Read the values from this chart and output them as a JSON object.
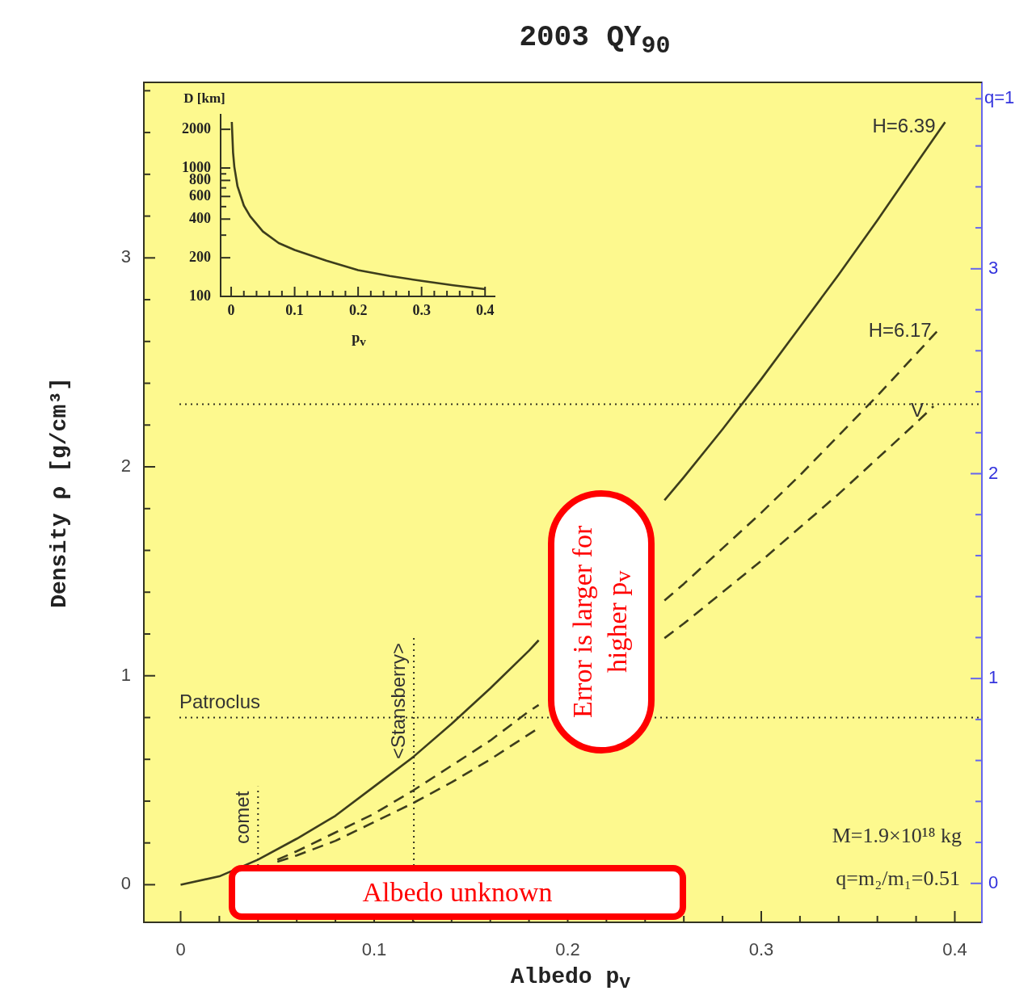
{
  "chart_data": [
    {
      "type": "line",
      "title": "2003 QY$_{90}$",
      "xlabel": "Albedo p$_{v}$",
      "ylabel": "Density ρ [g/cm³]",
      "series": [
        {
          "name": "H=6.39",
          "color": "#3d3d1c",
          "line_style": "solid",
          "x": [
            0,
            0.02,
            0.04,
            0.06,
            0.08,
            0.1,
            0.12,
            0.14,
            0.16,
            0.18,
            0.185,
            0.2,
            0.22,
            0.24,
            0.25,
            0.26,
            0.28,
            0.3,
            0.32,
            0.34,
            0.36,
            0.38,
            0.395
          ],
          "values": [
            0,
            0.04,
            0.12,
            0.22,
            0.33,
            0.47,
            0.61,
            0.77,
            0.94,
            1.12,
            1.17,
            null,
            null,
            null,
            1.84,
            1.95,
            2.18,
            2.42,
            2.67,
            2.92,
            3.18,
            3.45,
            3.65
          ]
        },
        {
          "name": "H=6.17",
          "color": "#3d3d1c",
          "line_style": "dashed",
          "x": [
            0.05,
            0.06,
            0.08,
            0.1,
            0.12,
            0.14,
            0.16,
            0.18,
            0.185,
            0.2,
            0.22,
            0.24,
            0.25,
            0.26,
            0.28,
            0.3,
            0.32,
            0.34,
            0.36,
            0.38,
            0.393
          ],
          "values": [
            0.12,
            0.16,
            0.25,
            0.34,
            0.45,
            0.57,
            0.69,
            0.83,
            0.86,
            null,
            null,
            null,
            1.36,
            1.44,
            1.61,
            1.78,
            1.96,
            2.15,
            2.34,
            2.54,
            2.67
          ]
        },
        {
          "name": "V",
          "color": "#3d3d1c",
          "line_style": "dashed",
          "x": [
            0.05,
            0.06,
            0.08,
            0.1,
            0.12,
            0.14,
            0.16,
            0.18,
            0.185,
            0.2,
            0.22,
            0.24,
            0.25,
            0.26,
            0.28,
            0.3,
            0.32,
            0.34,
            0.36,
            0.38,
            0.389
          ],
          "values": [
            0.11,
            0.14,
            0.21,
            0.3,
            0.39,
            0.49,
            0.6,
            0.72,
            0.75,
            null,
            null,
            null,
            1.18,
            1.25,
            1.4,
            1.55,
            1.71,
            1.87,
            2.04,
            2.21,
            2.29
          ]
        }
      ],
      "xlim": [
        -0.019,
        0.414
      ],
      "ylim": [
        -0.18,
        3.84
      ],
      "y2lim": [
        -0.19,
        3.91
      ],
      "xticks": [
        0,
        {
          "value": 0.02,
          "label": null
        },
        {
          "value": 0.04,
          "label": null
        },
        {
          "value": 0.06,
          "label": null
        },
        {
          "value": 0.08,
          "label": null
        },
        0.1,
        {
          "value": 0.12,
          "label": null
        },
        {
          "value": 0.14,
          "label": null
        },
        {
          "value": 0.16,
          "label": null
        },
        {
          "value": 0.18,
          "label": null
        },
        0.2,
        {
          "value": 0.22,
          "label": null
        },
        {
          "value": 0.24,
          "label": null
        },
        {
          "value": 0.26,
          "label": null
        },
        {
          "value": 0.28,
          "label": null
        },
        0.3,
        {
          "value": 0.32,
          "label": null
        },
        {
          "value": 0.34,
          "label": null
        },
        {
          "value": 0.36,
          "label": null
        },
        {
          "value": 0.38,
          "label": null
        },
        0.4
      ],
      "yticks": [
        0,
        {
          "value": 0.2,
          "label": null
        },
        {
          "value": 0.4,
          "label": null
        },
        {
          "value": 0.6,
          "label": null
        },
        {
          "value": 0.8,
          "label": null
        },
        1,
        {
          "value": 1.2,
          "label": null
        },
        {
          "value": 1.4,
          "label": null
        },
        {
          "value": 1.6,
          "label": null
        },
        {
          "value": 1.8,
          "label": null
        },
        2,
        {
          "value": 2.2,
          "label": null
        },
        {
          "value": 2.4,
          "label": null
        },
        {
          "value": 2.6,
          "label": null
        },
        {
          "value": 2.8,
          "label": null
        },
        3,
        {
          "value": 3.2,
          "label": null
        },
        {
          "value": 3.4,
          "label": null
        },
        {
          "value": 3.6,
          "label": null
        },
        {
          "value": 3.8,
          "label": null
        }
      ],
      "y2ticks": [
        0,
        {
          "value": 0.2,
          "label": null
        },
        {
          "value": 0.4,
          "label": null
        },
        {
          "value": 0.6,
          "label": null
        },
        {
          "value": 0.8,
          "label": null
        },
        1,
        {
          "value": 1.2,
          "label": null
        },
        {
          "value": 1.4,
          "label": null
        },
        {
          "value": 1.6,
          "label": null
        },
        {
          "value": 1.8,
          "label": null
        },
        2,
        {
          "value": 2.2,
          "label": null
        },
        {
          "value": 2.4,
          "label": null
        },
        {
          "value": 2.6,
          "label": null
        },
        {
          "value": 2.8,
          "label": null
        },
        3,
        {
          "value": 3.2,
          "label": null
        },
        {
          "value": 3.4,
          "label": null
        },
        {
          "value": 3.6,
          "label": null
        },
        {
          "value": 3.83,
          "label": null
        }
      ],
      "ref_lines": [
        {
          "axis": "y",
          "value": 2.3,
          "line_style": "dotted"
        },
        {
          "axis": "y",
          "value": 0.8,
          "label": "Patroclus",
          "line_style": "dotted"
        },
        {
          "axis": "x",
          "value": 0.04,
          "label": "comet",
          "line_style": "dotted"
        },
        {
          "axis": "x",
          "value": 0.1205,
          "label": "<Stansberry>",
          "line_style": "dotted"
        }
      ],
      "annotations": [
        "M=1.9×10¹⁸ kg",
        "q=m₂/m₁=0.51",
        "Error is larger for higher p$_{v}$",
        "Albedo unknown",
        "q=1"
      ],
      "grid": false,
      "legend": false,
      "marker": "none"
    },
    {
      "type": "line",
      "xlabel": "p$_{v}$",
      "ylabel": "D [km]",
      "log": "y",
      "color": "#3d3d1c",
      "x": [
        0.001,
        0.003,
        0.005,
        0.01,
        0.02,
        0.03,
        0.05,
        0.075,
        0.1,
        0.15,
        0.2,
        0.25,
        0.3,
        0.35,
        0.4
      ],
      "values": [
        2280,
        1320,
        1020,
        720,
        510,
        420,
        320,
        260,
        230,
        190,
        160,
        144,
        132,
        122,
        114
      ],
      "xlim": [
        -0.0166,
        0.415
      ],
      "ylim": [
        100,
        2600
      ],
      "xticks": [
        0,
        {
          "value": 0.02,
          "label": null
        },
        {
          "value": 0.04,
          "label": null
        },
        {
          "value": 0.06,
          "label": null
        },
        {
          "value": 0.08,
          "label": null
        },
        0.1,
        {
          "value": 0.12,
          "label": null
        },
        {
          "value": 0.14,
          "label": null
        },
        {
          "value": 0.16,
          "label": null
        },
        {
          "value": 0.18,
          "label": null
        },
        0.2,
        {
          "value": 0.22,
          "label": null
        },
        {
          "value": 0.24,
          "label": null
        },
        {
          "value": 0.26,
          "label": null
        },
        {
          "value": 0.28,
          "label": null
        },
        0.3,
        {
          "value": 0.32,
          "label": null
        },
        {
          "value": 0.34,
          "label": null
        },
        {
          "value": 0.36,
          "label": null
        },
        {
          "value": 0.38,
          "label": null
        },
        0.4
      ],
      "yticks": [
        100,
        200,
        {
          "value": 300,
          "label": null
        },
        400,
        {
          "value": 500,
          "label": null
        },
        600,
        {
          "value": 700,
          "label": null
        },
        800,
        {
          "value": 900,
          "label": null
        },
        1000,
        2000
      ],
      "grid": false,
      "legend": false,
      "marker": "none"
    }
  ]
}
